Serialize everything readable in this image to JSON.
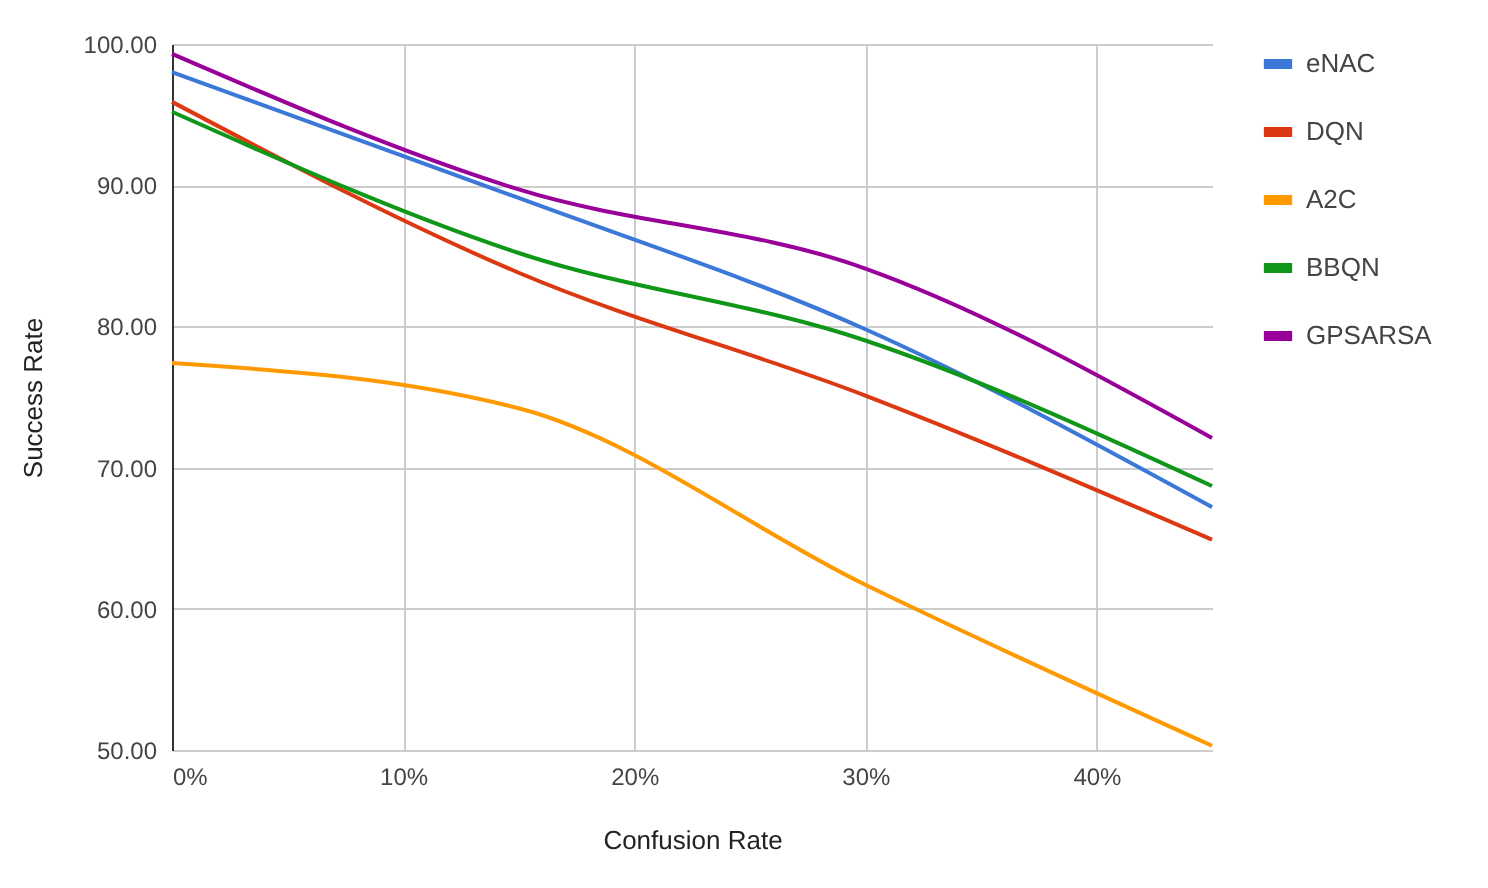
{
  "chart_data": {
    "type": "line",
    "xlabel": "Confusion Rate",
    "ylabel": "Success Rate",
    "x": [
      0,
      15,
      30,
      45
    ],
    "xlim": [
      0,
      45
    ],
    "xticks": [
      {
        "value": 0,
        "label": "0%"
      },
      {
        "value": 10,
        "label": "10%"
      },
      {
        "value": 20,
        "label": "20%"
      },
      {
        "value": 30,
        "label": "30%"
      },
      {
        "value": 40,
        "label": "40%"
      }
    ],
    "ylim": [
      50,
      100
    ],
    "yticks": [
      {
        "value": 50,
        "label": "50.00"
      },
      {
        "value": 60,
        "label": "60.00"
      },
      {
        "value": 70,
        "label": "70.00"
      },
      {
        "value": 80,
        "label": "80.00"
      },
      {
        "value": 90,
        "label": "90.00"
      },
      {
        "value": 100,
        "label": "100.00"
      }
    ],
    "grid": true,
    "legend": "right",
    "marker": "none",
    "line_style": "solid",
    "series": [
      {
        "name": "eNAC",
        "color": "#3c78d8",
        "values": [
          98.0,
          89.1,
          79.8,
          67.2
        ]
      },
      {
        "name": "DQN",
        "color": "#dc3912",
        "values": [
          95.9,
          83.8,
          75.1,
          64.9
        ]
      },
      {
        "name": "A2C",
        "color": "#ff9900",
        "values": [
          77.4,
          74.2,
          61.7,
          50.3
        ]
      },
      {
        "name": "BBQN",
        "color": "#109618",
        "values": [
          95.2,
          85.2,
          79.0,
          68.7
        ]
      },
      {
        "name": "GPSARSA",
        "color": "#990099",
        "values": [
          99.3,
          89.7,
          84.1,
          72.1
        ]
      }
    ]
  }
}
